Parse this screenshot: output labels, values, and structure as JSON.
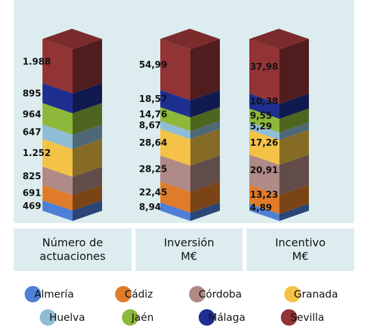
{
  "chart_data": {
    "type": "bar",
    "stacked": true,
    "style": "3d-stacked-columns",
    "categories": [
      "Número de\nactuaciones",
      "Inversión\nM€",
      "Incentivo\nM€"
    ],
    "series": [
      {
        "name": "Almería",
        "color": "#4f7fd6",
        "values": [
          469,
          8.94,
          4.89
        ],
        "labels": [
          "469",
          "8,94",
          "4,89"
        ]
      },
      {
        "name": "Cádiz",
        "color": "#e07b2a",
        "values": [
          691,
          22.45,
          13.23
        ],
        "labels": [
          "691",
          "22,45",
          "13,23"
        ]
      },
      {
        "name": "Córdoba",
        "color": "#b08a86",
        "values": [
          825,
          28.25,
          20.91
        ],
        "labels": [
          "825",
          "28,25",
          "20,91"
        ]
      },
      {
        "name": "Granada",
        "color": "#f3c247",
        "values": [
          1252,
          28.64,
          17.26
        ],
        "labels": [
          "1.252",
          "28,64",
          "17,26"
        ]
      },
      {
        "name": "Huelva",
        "color": "#8fbdd6",
        "values": [
          647,
          8.67,
          5.29
        ],
        "labels": [
          "647",
          "8,67",
          "5,29"
        ]
      },
      {
        "name": "Jaén",
        "color": "#8db83a",
        "values": [
          964,
          14.76,
          9.55
        ],
        "labels": [
          "964",
          "14,76",
          "9,55"
        ]
      },
      {
        "name": "Málaga",
        "color": "#1f2f8f",
        "values": [
          895,
          18.57,
          10.38
        ],
        "labels": [
          "895",
          "18,57",
          "10,38"
        ]
      },
      {
        "name": "Sevilla",
        "color": "#923335",
        "values": [
          1988,
          54.99,
          37.98
        ],
        "labels": [
          "1.988",
          "54,99",
          "37,98"
        ]
      }
    ],
    "legend_position": "bottom",
    "grid": false
  },
  "colors": {
    "panel_background": "#dcecef"
  }
}
